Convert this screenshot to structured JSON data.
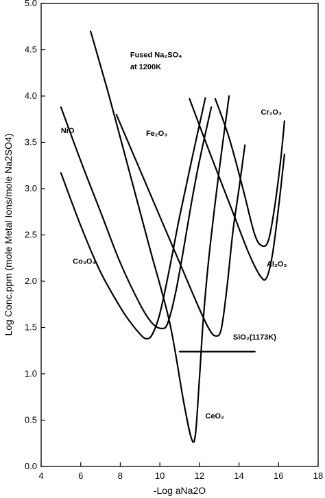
{
  "chart_data": {
    "type": "line",
    "title": "",
    "xlabel": "-Log aNa2O",
    "ylabel": "Log Conc.ppm (mole Metal Ions/mole Na2SO4)",
    "xlim": [
      4,
      18
    ],
    "ylim": [
      0.0,
      5.0
    ],
    "xticks": [
      "4",
      "6",
      "8",
      "10",
      "12",
      "14",
      "16",
      "18"
    ],
    "yticks": [
      "0.0",
      "0.5",
      "1.0",
      "1.5",
      "2.0",
      "2.5",
      "3.0",
      "3.5",
      "4.0",
      "4.5",
      "5.0"
    ],
    "grid": false,
    "legend": "none",
    "series": [
      {
        "name": "Co3O4",
        "x": [
          5.0,
          6.0,
          7.0,
          8.0,
          8.5,
          9.0,
          9.3,
          9.6,
          10.0,
          10.5,
          11.0,
          11.6,
          12.3
        ],
        "y": [
          3.17,
          2.6,
          2.1,
          1.72,
          1.56,
          1.43,
          1.38,
          1.42,
          1.65,
          2.15,
          2.7,
          3.3,
          3.98
        ]
      },
      {
        "name": "NiO",
        "x": [
          5.0,
          6.0,
          7.0,
          8.0,
          9.0,
          9.6,
          10.1,
          10.4,
          10.8,
          11.2,
          11.6,
          12.0,
          12.6
        ],
        "y": [
          3.88,
          3.3,
          2.75,
          2.2,
          1.75,
          1.55,
          1.49,
          1.55,
          1.88,
          2.35,
          2.85,
          3.3,
          3.88
        ]
      },
      {
        "name": "Fe2O3",
        "x": [
          7.8,
          9.0,
          10.0,
          11.0,
          12.0,
          12.5,
          12.8,
          13.1,
          13.4,
          13.7,
          14.0,
          14.3
        ],
        "y": [
          3.8,
          3.2,
          2.7,
          2.2,
          1.7,
          1.48,
          1.41,
          1.48,
          1.95,
          2.55,
          3.0,
          3.47
        ]
      },
      {
        "name": "CeO2",
        "x": [
          6.5,
          7.5,
          8.5,
          9.5,
          10.5,
          11.2,
          11.6,
          11.8,
          12.0,
          12.2,
          12.5,
          13.0,
          13.5
        ],
        "y": [
          4.7,
          3.95,
          3.15,
          2.35,
          1.55,
          0.7,
          0.3,
          0.35,
          0.95,
          1.6,
          2.3,
          3.2,
          4.0
        ]
      },
      {
        "name": "Cr2O3",
        "x": [
          12.8,
          13.5,
          14.2,
          14.8,
          15.2,
          15.5,
          15.8,
          16.1,
          16.3
        ],
        "y": [
          3.97,
          3.55,
          3.0,
          2.5,
          2.38,
          2.45,
          2.8,
          3.3,
          3.73
        ]
      },
      {
        "name": "Al2O3",
        "x": [
          11.5,
          12.5,
          13.5,
          14.5,
          15.1,
          15.4,
          15.7,
          16.0,
          16.3
        ],
        "y": [
          3.97,
          3.4,
          2.85,
          2.3,
          2.05,
          2.04,
          2.3,
          2.8,
          3.37
        ]
      },
      {
        "name": "SiO2(1173K)",
        "x": [
          11.0,
          14.8
        ],
        "y": [
          1.24,
          1.24
        ]
      }
    ],
    "annotations": [
      {
        "text": "Fused Na₂SO₄",
        "x": 8.5,
        "y": 4.42
      },
      {
        "text": "at 1200K",
        "x": 8.5,
        "y": 4.29
      },
      {
        "text": "NiO",
        "x": 5.0,
        "y": 3.6
      },
      {
        "text": "Fe₂O₃",
        "x": 9.3,
        "y": 3.57
      },
      {
        "text": "Cr₂O₃",
        "x": 15.1,
        "y": 3.8
      },
      {
        "text": "Co₃O₄",
        "x": 5.6,
        "y": 2.19
      },
      {
        "text": "Al₂O₃",
        "x": 15.4,
        "y": 2.16
      },
      {
        "text": "SiO₂(1173K)",
        "x": 13.7,
        "y": 1.37
      },
      {
        "text": "CeO₂",
        "x": 12.3,
        "y": 0.52
      }
    ]
  }
}
